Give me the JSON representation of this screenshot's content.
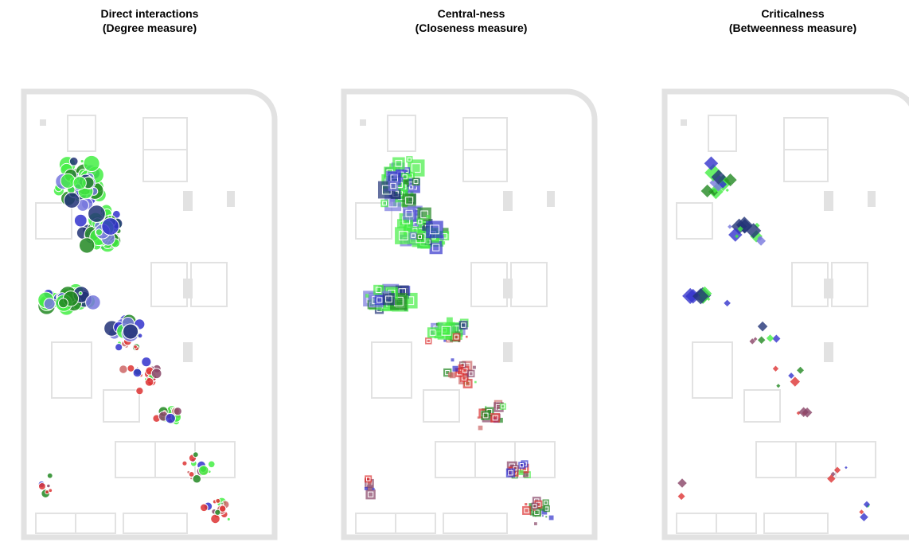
{
  "panels": [
    {
      "title": "Direct interactions",
      "subtitle": "(Degree measure)"
    },
    {
      "title": "Central-ness",
      "subtitle": "(Closeness measure)"
    },
    {
      "title": "Criticalness",
      "subtitle": "(Betweenness measure)"
    }
  ]
}
